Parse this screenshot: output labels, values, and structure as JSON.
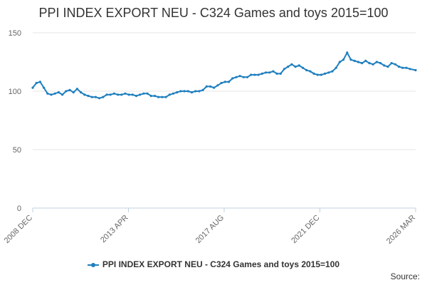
{
  "chart_data": {
    "type": "line",
    "title": "PPI INDEX EXPORT NEU - C324 Games and toys 2015=100",
    "xlabel": "",
    "ylabel": "",
    "ylim": [
      0,
      150
    ],
    "yticks": [
      0,
      50,
      100,
      150
    ],
    "xlim": [
      "2008-12",
      "2026-03"
    ],
    "xtick_labels": [
      "2008 DEC",
      "2013 APR",
      "2017 AUG",
      "2021 DEC",
      "2026 MAR"
    ],
    "legend_position": "bottom",
    "grid": "horizontal",
    "series": [
      {
        "name": "PPI INDEX EXPORT NEU - C324 Games and toys 2015=100",
        "color": "#1f7fbf",
        "marker": "circle",
        "x": [
          "2008-12",
          "2009-02",
          "2009-04",
          "2009-06",
          "2009-08",
          "2009-10",
          "2009-12",
          "2010-02",
          "2010-04",
          "2010-06",
          "2010-08",
          "2010-10",
          "2010-12",
          "2011-02",
          "2011-04",
          "2011-06",
          "2011-08",
          "2011-10",
          "2011-12",
          "2012-02",
          "2012-04",
          "2012-06",
          "2012-08",
          "2012-10",
          "2012-12",
          "2013-02",
          "2013-04",
          "2013-06",
          "2013-08",
          "2013-10",
          "2013-12",
          "2014-02",
          "2014-04",
          "2014-06",
          "2014-08",
          "2014-10",
          "2014-12",
          "2015-02",
          "2015-04",
          "2015-06",
          "2015-08",
          "2015-10",
          "2015-12",
          "2016-02",
          "2016-04",
          "2016-06",
          "2016-08",
          "2016-10",
          "2016-12",
          "2017-02",
          "2017-04",
          "2017-06",
          "2017-08",
          "2017-10",
          "2017-12",
          "2018-02",
          "2018-04",
          "2018-06",
          "2018-08",
          "2018-10",
          "2018-12",
          "2019-02",
          "2019-04",
          "2019-06",
          "2019-08",
          "2019-10",
          "2019-12",
          "2020-02",
          "2020-04",
          "2020-06",
          "2020-08",
          "2020-10",
          "2020-12",
          "2021-02",
          "2021-04",
          "2021-06",
          "2021-08",
          "2021-10",
          "2021-12",
          "2022-02",
          "2022-04",
          "2022-06",
          "2022-08",
          "2022-10",
          "2022-12",
          "2023-02",
          "2023-04",
          "2023-06",
          "2023-08",
          "2023-10",
          "2023-12",
          "2024-02",
          "2024-04",
          "2024-06",
          "2024-08",
          "2024-10",
          "2024-12",
          "2025-02",
          "2025-04",
          "2025-06",
          "2025-08",
          "2025-10",
          "2025-12",
          "2026-03"
        ],
        "values": [
          103,
          107,
          108,
          103,
          98,
          97,
          98,
          99,
          97,
          100,
          101,
          99,
          102,
          99,
          97,
          96,
          95,
          95,
          94,
          95,
          97,
          97,
          98,
          97,
          97,
          98,
          97,
          97,
          96,
          97,
          98,
          98,
          96,
          96,
          95,
          95,
          95,
          97,
          98,
          99,
          100,
          100,
          100,
          99,
          100,
          100,
          101,
          104,
          104,
          103,
          105,
          107,
          108,
          108,
          111,
          112,
          113,
          112,
          112,
          114,
          114,
          114,
          115,
          116,
          116,
          117,
          115,
          115,
          119,
          121,
          123,
          121,
          122,
          120,
          118,
          117,
          115,
          114,
          114,
          115,
          116,
          117,
          120,
          125,
          127,
          133,
          127,
          126,
          125,
          124,
          126,
          124,
          123,
          125,
          124,
          122,
          121,
          124,
          123,
          121,
          120,
          120,
          119,
          118
        ]
      }
    ]
  },
  "legend": {
    "label": "PPI INDEX EXPORT NEU - C324 Games and toys 2015=100"
  },
  "source": {
    "label": "Source:"
  }
}
